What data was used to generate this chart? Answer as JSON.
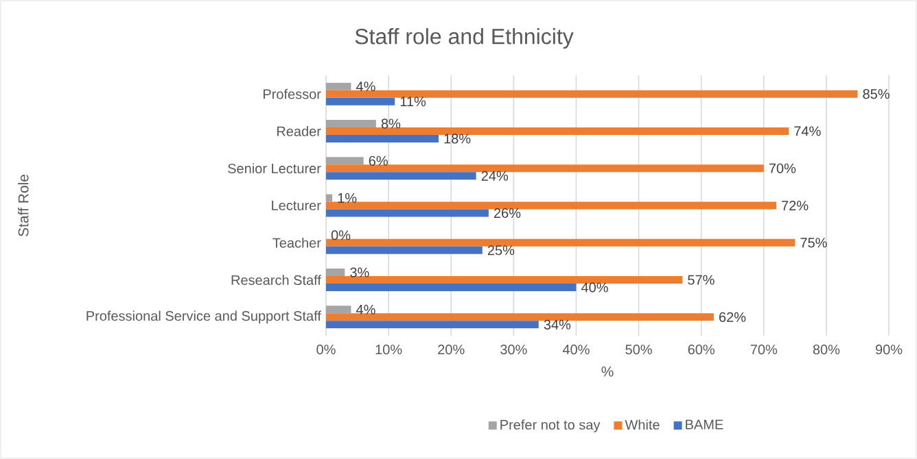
{
  "chart_data": {
    "type": "bar",
    "orientation": "horizontal",
    "title": "Staff role and Ethnicity",
    "xlabel": "%",
    "ylabel": "Staff Role",
    "categories": [
      "Professor",
      "Reader",
      "Senior Lecturer",
      "Lecturer",
      "Teacher",
      "Research Staff",
      "Professional Service and Support Staff"
    ],
    "series": [
      {
        "name": "Prefer not to say",
        "color": "#a5a5a5",
        "values": [
          4,
          8,
          6,
          1,
          0,
          3,
          4
        ],
        "value_labels": [
          "4%",
          "8%",
          "6%",
          "1%",
          "0%",
          "3%",
          "4%"
        ]
      },
      {
        "name": "White",
        "color": "#ed7d31",
        "values": [
          85,
          74,
          70,
          72,
          75,
          57,
          62
        ],
        "value_labels": [
          "85%",
          "74%",
          "70%",
          "72%",
          "75%",
          "57%",
          "62%"
        ]
      },
      {
        "name": "BAME",
        "color": "#4472c4",
        "values": [
          11,
          18,
          24,
          26,
          25,
          40,
          34
        ],
        "value_labels": [
          "11%",
          "18%",
          "24%",
          "26%",
          "25%",
          "40%",
          "34%"
        ]
      }
    ],
    "xlim": [
      0,
      90
    ],
    "xticks": [
      {
        "value": 0,
        "label": "0%"
      },
      {
        "value": 10,
        "label": "10%"
      },
      {
        "value": 20,
        "label": "20%"
      },
      {
        "value": 30,
        "label": "30%"
      },
      {
        "value": 40,
        "label": "40%"
      },
      {
        "value": 50,
        "label": "50%"
      },
      {
        "value": 60,
        "label": "60%"
      },
      {
        "value": 70,
        "label": "70%"
      },
      {
        "value": 80,
        "label": "80%"
      },
      {
        "value": 90,
        "label": "90%"
      }
    ],
    "grid": "x",
    "legend": "bottom"
  }
}
